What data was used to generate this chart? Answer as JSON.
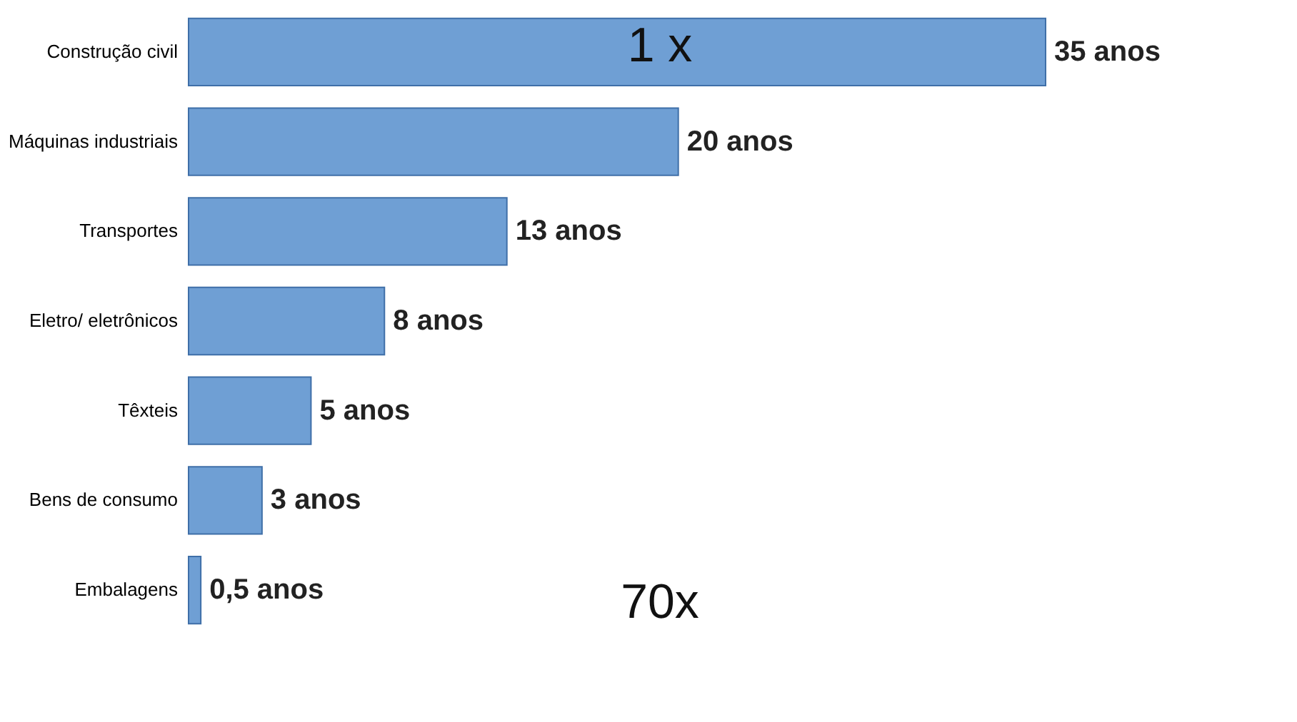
{
  "chart_data": {
    "type": "bar",
    "orientation": "horizontal",
    "categories": [
      "Construção civil",
      "Máquinas industriais",
      "Transportes",
      "Eletro/ eletrônicos",
      "Têxteis",
      "Bens de consumo",
      "Embalagens"
    ],
    "values": [
      35,
      20,
      13,
      8,
      5,
      3,
      0.5
    ],
    "value_labels": [
      "35 anos",
      "20 anos",
      "13 anos",
      "8 anos",
      "5 anos",
      "3 anos",
      "0,5 anos"
    ],
    "color": "#6f9fd4",
    "annotations": [
      "1 x",
      "70x"
    ]
  }
}
